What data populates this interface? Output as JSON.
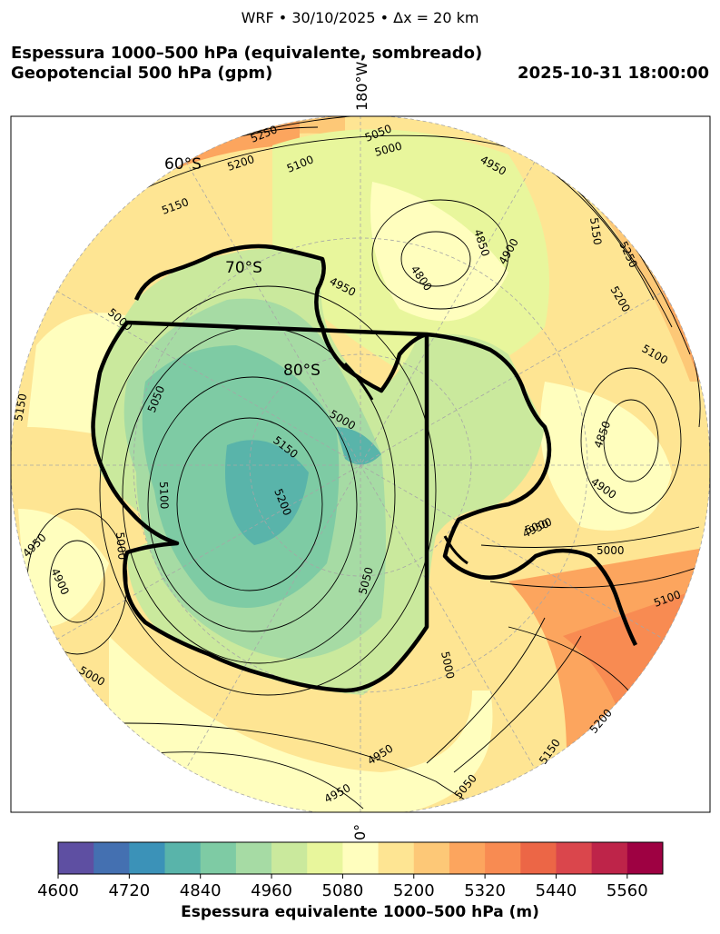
{
  "suptitle": "WRF • 30/10/2025 • Δx = 20 km",
  "title": {
    "line1": "Espessura 1000–500 hPa (equivalente, sombreado)",
    "line2": "Geopotencial 500 hPa (gpm)",
    "valid_time": "2025-10-31 18:00:00"
  },
  "map": {
    "projection": "south-polar stereographic",
    "lon_labels": {
      "top": "180°W",
      "bottom": "0°"
    },
    "lat_labels": [
      "60°S",
      "70°S",
      "80°S"
    ],
    "contour_labels": [
      "5250",
      "5200",
      "5150",
      "5100",
      "5050",
      "5000",
      "4950",
      "4850",
      "4800",
      "4900",
      "5000",
      "4950",
      "5150",
      "5250",
      "5200",
      "5100",
      "4850",
      "4900",
      "4950",
      "5000",
      "5100",
      "5200",
      "5150",
      "5050",
      "4950",
      "4950",
      "5000",
      "4950",
      "4900",
      "5000",
      "5150",
      "5050",
      "5100",
      "5050",
      "5150",
      "5200",
      "5000",
      "5000",
      "5000"
    ],
    "shading_colors": {
      "ocean_warm": "#f9a15b",
      "ocean_mid": "#fdd386",
      "ocean_light": "#fff5b4",
      "ice_green": "#a9dba2",
      "ice_teal": "#7fc8a4",
      "ice_blue": "#62b5a6",
      "coast": "#000000"
    }
  },
  "colorbar": {
    "label": "Espessura equivalente 1000–500 hPa (m)",
    "tick_labels": [
      "4600",
      "4720",
      "4840",
      "4960",
      "5080",
      "5200",
      "5320",
      "5440",
      "5560"
    ],
    "colors": [
      "#5e4fa2",
      "#4470b1",
      "#3b92b8",
      "#59b4aa",
      "#7ecba4",
      "#a6dba4",
      "#cae99d",
      "#e8f69c",
      "#fffebe",
      "#fee593",
      "#fdc877",
      "#fca55e",
      "#f88b52",
      "#ec6646",
      "#da464c",
      "#be2449",
      "#9e0142"
    ]
  }
}
